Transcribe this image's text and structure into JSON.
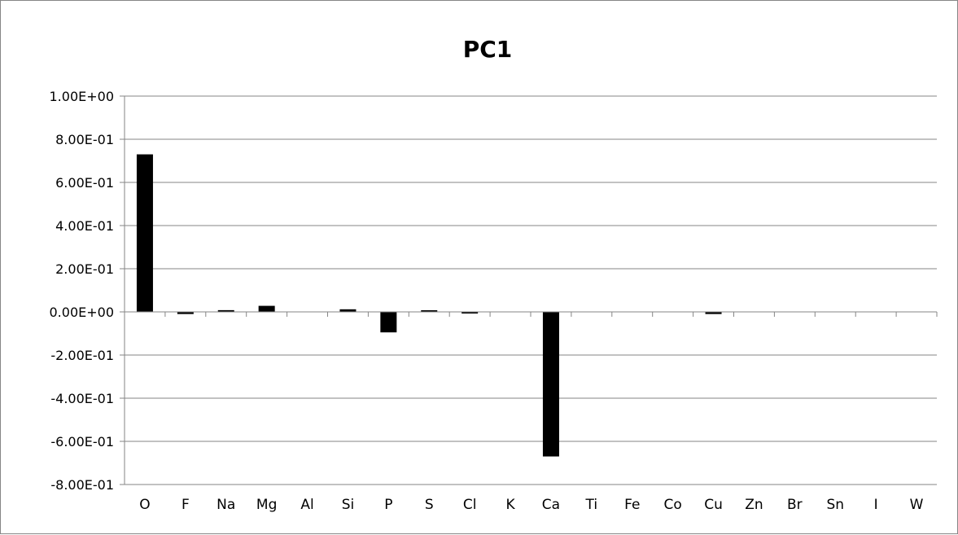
{
  "chart_data": {
    "type": "bar",
    "title": "PC1",
    "xlabel": "",
    "ylabel": "",
    "categories": [
      "O",
      "F",
      "Na",
      "Mg",
      "Al",
      "Si",
      "P",
      "S",
      "Cl",
      "K",
      "Ca",
      "Ti",
      "Fe",
      "Co",
      "Cu",
      "Zn",
      "Br",
      "Sn",
      "I",
      "W"
    ],
    "values": [
      0.73,
      -0.01,
      0.008,
      0.028,
      0.0,
      0.012,
      -0.095,
      0.005,
      -0.003,
      0.0,
      -0.67,
      0.0,
      0.0,
      0.0,
      -0.01,
      0.0,
      0.0,
      0.0,
      0.0,
      0.0
    ],
    "ylim": [
      -0.8,
      1.0
    ],
    "yticks": [
      {
        "value": 1.0,
        "label": "1.00E+00"
      },
      {
        "value": 0.8,
        "label": "8.00E-01"
      },
      {
        "value": 0.6,
        "label": "6.00E-01"
      },
      {
        "value": 0.4,
        "label": "4.00E-01"
      },
      {
        "value": 0.2,
        "label": "2.00E-01"
      },
      {
        "value": 0.0,
        "label": "0.00E+00"
      },
      {
        "value": -0.2,
        "label": "-2.00E-01"
      },
      {
        "value": -0.4,
        "label": "-4.00E-01"
      },
      {
        "value": -0.6,
        "label": "-6.00E-01"
      },
      {
        "value": -0.8,
        "label": "-8.00E-01"
      }
    ],
    "grid": true,
    "legend": "none",
    "colors": {
      "bar": "#000000",
      "grid": "#868686",
      "axis": "#868686"
    }
  }
}
